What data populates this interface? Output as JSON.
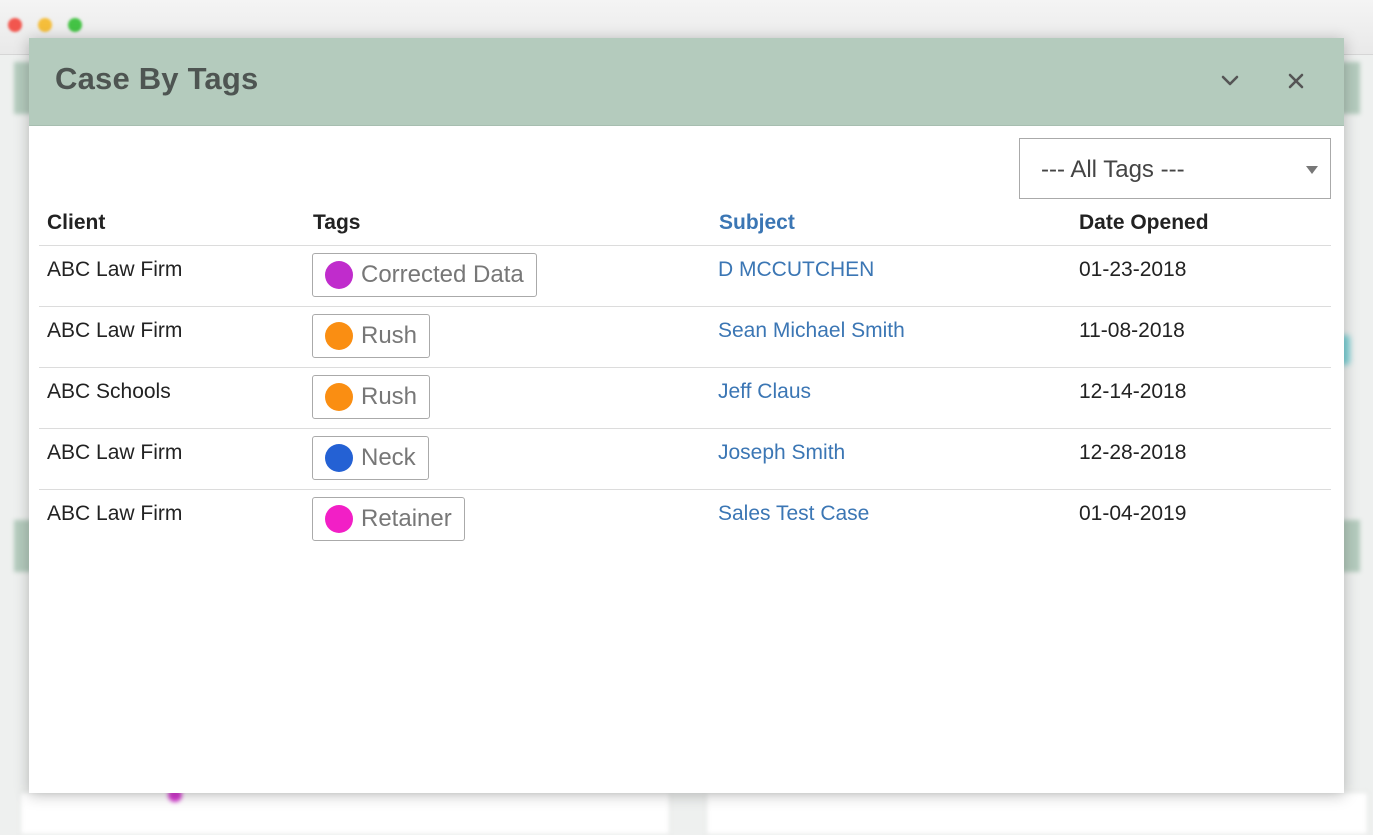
{
  "modal": {
    "title": "Case By Tags",
    "collapse_icon": "chevron-down-icon",
    "close_icon": "close-icon"
  },
  "filter": {
    "selected": "--- All Tags ---"
  },
  "table": {
    "headers": {
      "client": "Client",
      "tags": "Tags",
      "subject": "Subject",
      "date_opened": "Date Opened"
    },
    "rows": [
      {
        "client": "ABC Law Firm",
        "tag": "Corrected Data",
        "tag_color": "#c02ccc",
        "subject": "D MCCUTCHEN",
        "date_opened": "01-23-2018"
      },
      {
        "client": "ABC Law Firm",
        "tag": "Rush",
        "tag_color": "#fa8e12",
        "subject": "Sean Michael Smith",
        "date_opened": "11-08-2018"
      },
      {
        "client": "ABC Schools",
        "tag": "Rush",
        "tag_color": "#fa8e12",
        "subject": "Jeff Claus",
        "date_opened": "12-14-2018"
      },
      {
        "client": "ABC Law Firm",
        "tag": "Neck",
        "tag_color": "#2461d4",
        "subject": "Joseph Smith",
        "date_opened": "12-28-2018"
      },
      {
        "client": "ABC Law Firm",
        "tag": "Retainer",
        "tag_color": "#f21fc6",
        "subject": "Sales Test Case",
        "date_opened": "01-04-2019"
      }
    ]
  },
  "colors": {
    "header_bg": "#b4cbbd",
    "link": "#3b76b4"
  }
}
